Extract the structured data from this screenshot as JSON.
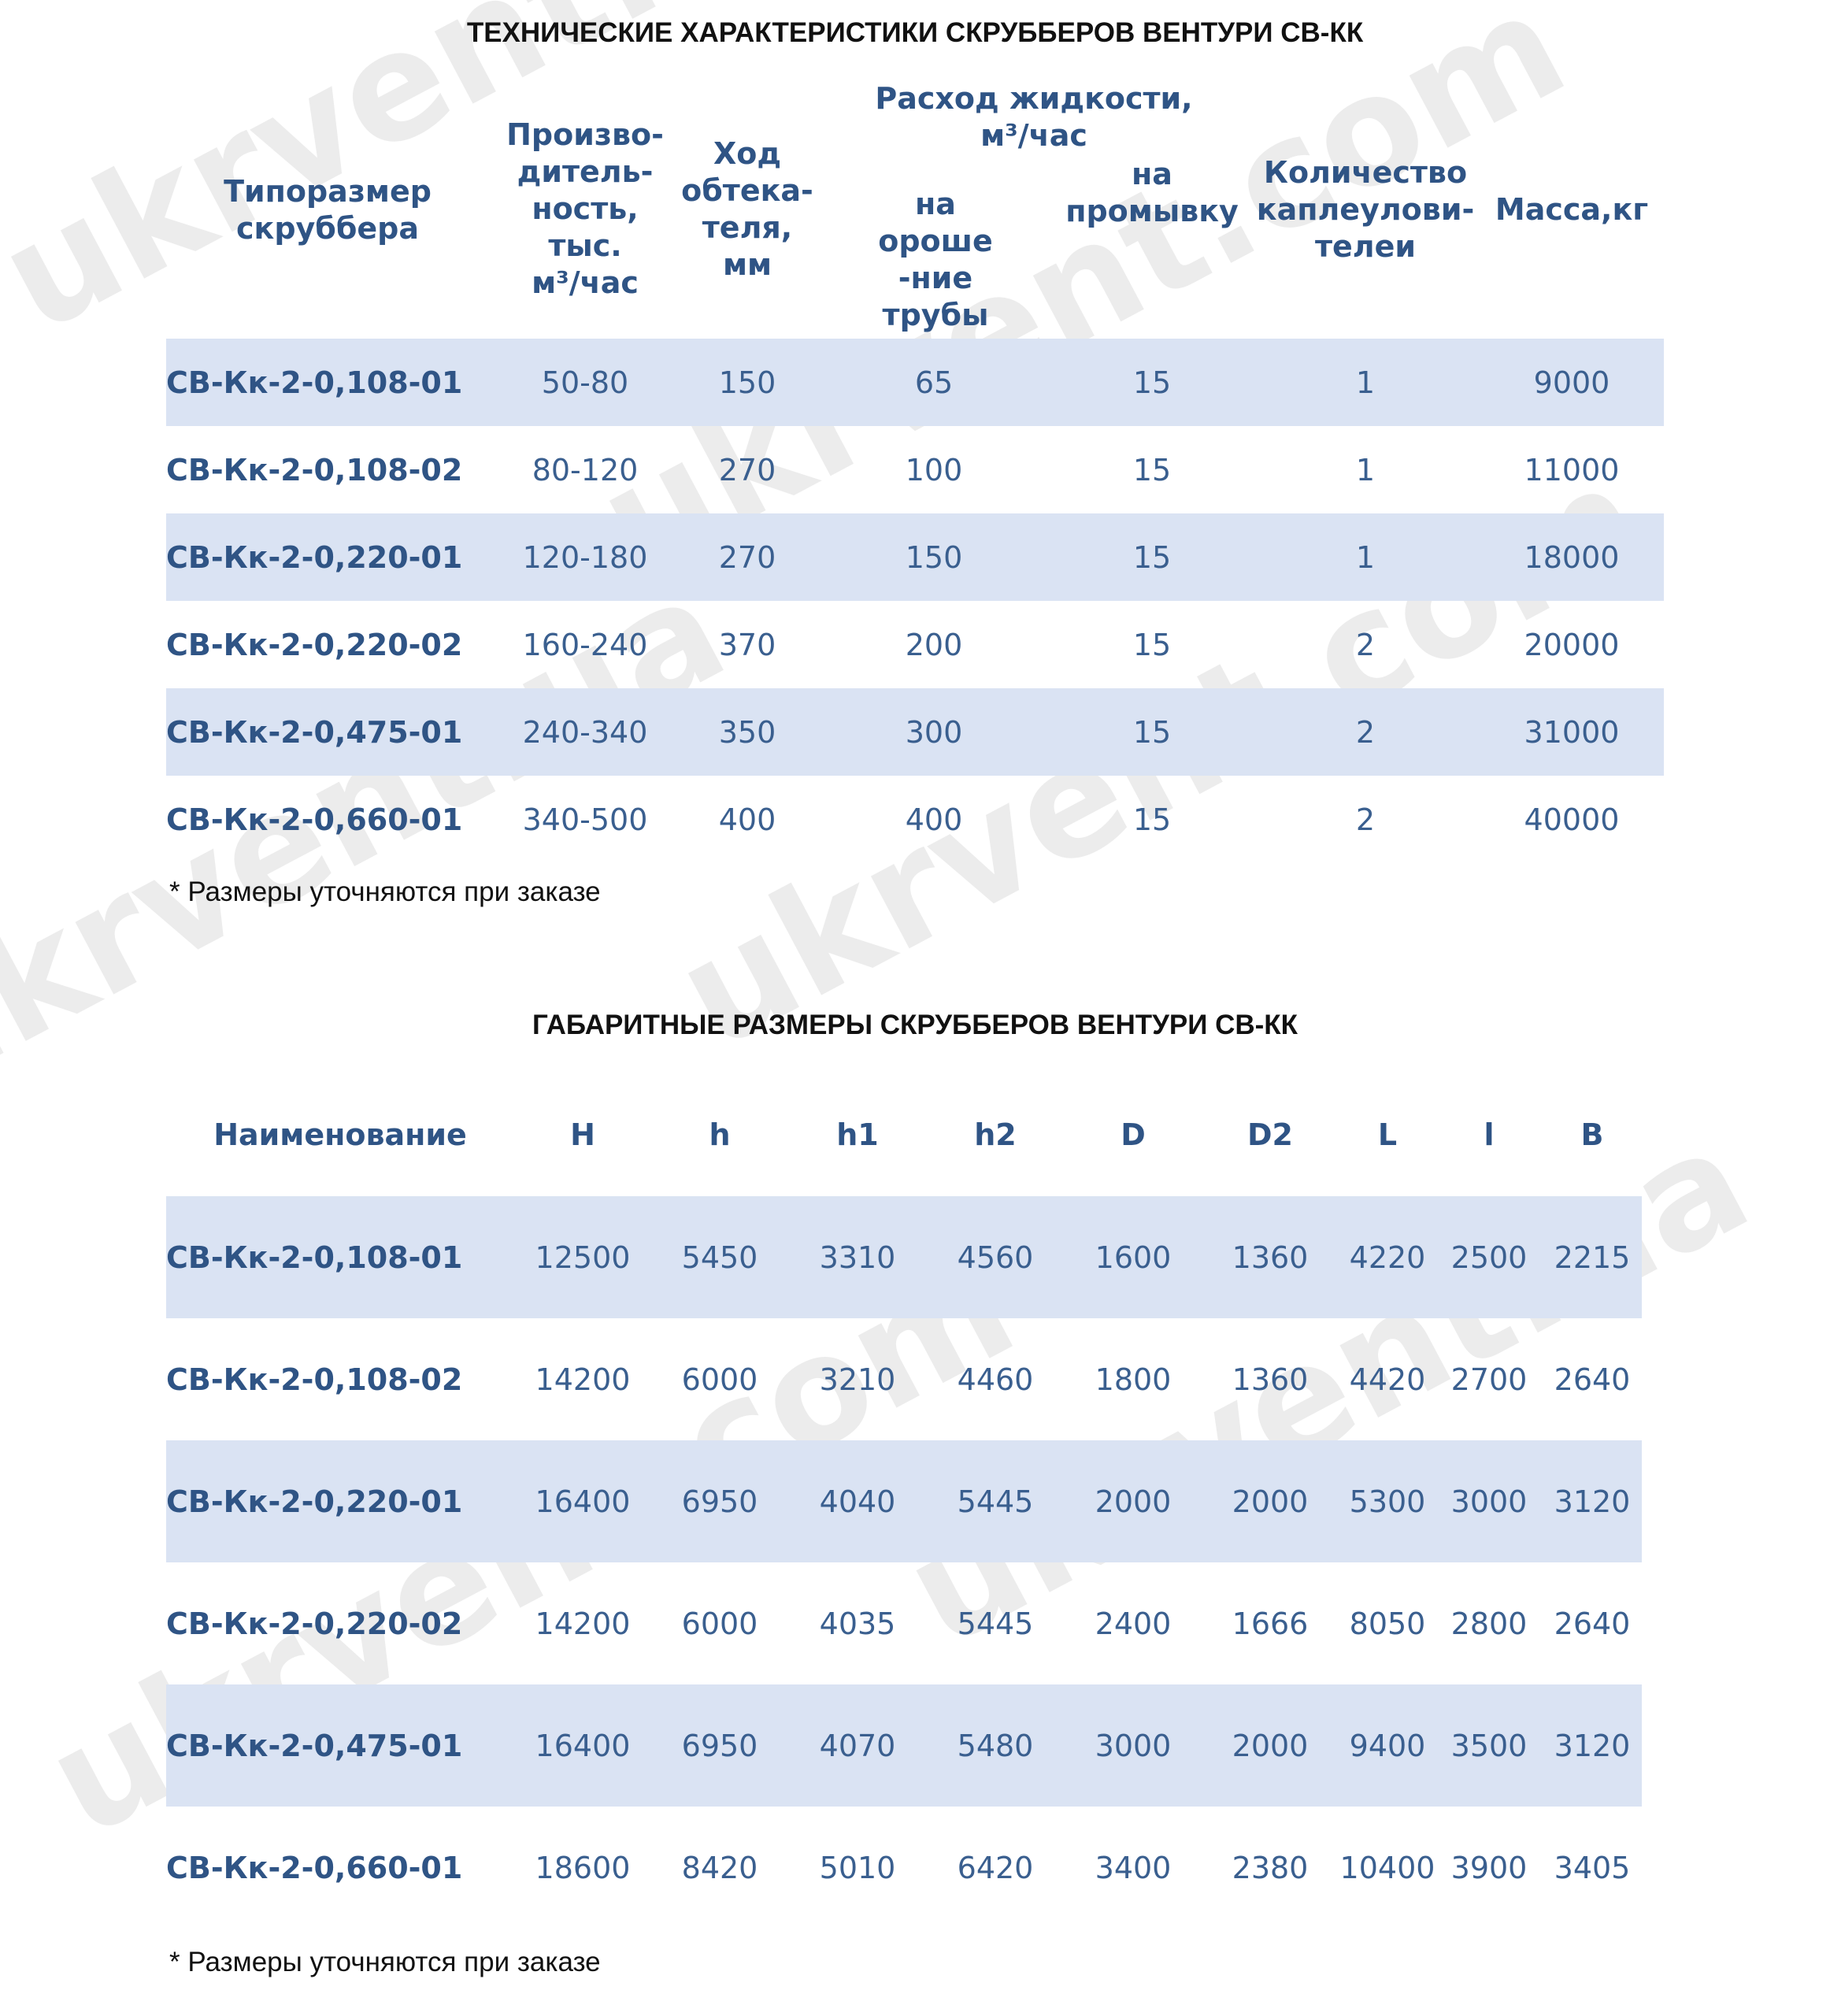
{
  "watermark": "ukrvent.com",
  "watermark_alt": "ukrvent.ua",
  "specs": {
    "title": "ТЕХНИЧЕСКИЕ ХАРАКТЕРИСТИКИ СКРУББЕРОВ ВЕНТУРИ СВ-КК",
    "headers": {
      "size": "Типоразмер\nскруббера",
      "capacity": "Произво-\nдитель-\nность,\nтыс.\nм³/час",
      "stroke": "Ход\nобтека-\nтеля,\nмм",
      "liquid_flow": "Расход жидкости,\nм³/час",
      "irrigation": "на\nороше\n-ние\nтрубы",
      "flushing": "на\nпромывку",
      "droplet_catchers": "Количество\nкаплеулови-\nтелеи",
      "mass": "Масса,кг"
    },
    "rows": [
      [
        "СВ-Кк-2-0,108-01",
        "50-80",
        "150",
        "65",
        "15",
        "1",
        "9000"
      ],
      [
        "СВ-Кк-2-0,108-02",
        "80-120",
        "270",
        "100",
        "15",
        "1",
        "11000"
      ],
      [
        "СВ-Кк-2-0,220-01",
        "120-180",
        "270",
        "150",
        "15",
        "1",
        "18000"
      ],
      [
        "СВ-Кк-2-0,220-02",
        "160-240",
        "370",
        "200",
        "15",
        "2",
        "20000"
      ],
      [
        "СВ-Кк-2-0,475-01",
        "240-340",
        "350",
        "300",
        "15",
        "2",
        "31000"
      ],
      [
        "СВ-Кк-2-0,660-01",
        "340-500",
        "400",
        "400",
        "15",
        "2",
        "40000"
      ]
    ],
    "note": "* Размеры уточняются при заказе"
  },
  "dims": {
    "title": "ГАБАРИТНЫЕ РАЗМЕРЫ СКРУББЕРОВ ВЕНТУРИ СВ-КК",
    "headers": [
      "Наименование",
      "H",
      "h",
      "h1",
      "h2",
      "D",
      "D2",
      "L",
      "l",
      "B"
    ],
    "rows": [
      [
        "СВ-Кк-2-0,108-01",
        "12500",
        "5450",
        "3310",
        "4560",
        "1600",
        "1360",
        "4220",
        "2500",
        "2215"
      ],
      [
        "СВ-Кк-2-0,108-02",
        "14200",
        "6000",
        "3210",
        "4460",
        "1800",
        "1360",
        "4420",
        "2700",
        "2640"
      ],
      [
        "СВ-Кк-2-0,220-01",
        "16400",
        "6950",
        "4040",
        "5445",
        "2000",
        "2000",
        "5300",
        "3000",
        "3120"
      ],
      [
        "СВ-Кк-2-0,220-02",
        "14200",
        "6000",
        "4035",
        "5445",
        "2400",
        "1666",
        "8050",
        "2800",
        "2640"
      ],
      [
        "СВ-Кк-2-0,475-01",
        "16400",
        "6950",
        "4070",
        "5480",
        "3000",
        "2000",
        "9400",
        "3500",
        "3120"
      ],
      [
        "СВ-Кк-2-0,660-01",
        "18600",
        "8420",
        "5010",
        "6420",
        "3400",
        "2380",
        "10400",
        "3900",
        "3405"
      ]
    ],
    "note": "* Размеры уточняются при заказе"
  }
}
